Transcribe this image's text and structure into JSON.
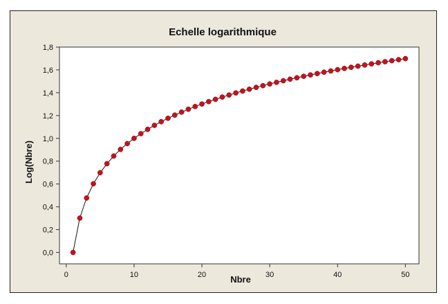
{
  "chart_data": {
    "type": "line",
    "title": "Echelle logarithmique",
    "xlabel": "Nbre",
    "ylabel": "Log(Nbre)",
    "xlim": [
      -1,
      52
    ],
    "ylim": [
      -0.1,
      1.8
    ],
    "x_ticks": [
      0,
      10,
      20,
      30,
      40,
      50
    ],
    "x_tick_labels": [
      "0",
      "10",
      "20",
      "30",
      "40",
      "50"
    ],
    "y_ticks": [
      0.0,
      0.2,
      0.4,
      0.6,
      0.8,
      1.0,
      1.2,
      1.4,
      1.6,
      1.8
    ],
    "y_tick_labels": [
      "0,0",
      "0,2",
      "0,4",
      "0,6",
      "0,8",
      "1,0",
      "1,2",
      "1,4",
      "1,6",
      "1,8"
    ],
    "grid": false,
    "series": [
      {
        "marker": "circle",
        "marker_color": "#c0141e",
        "line_color": "#111111",
        "x": [
          1,
          2,
          3,
          4,
          5,
          6,
          7,
          8,
          9,
          10,
          11,
          12,
          13,
          14,
          15,
          16,
          17,
          18,
          19,
          20,
          21,
          22,
          23,
          24,
          25,
          26,
          27,
          28,
          29,
          30,
          31,
          32,
          33,
          34,
          35,
          36,
          37,
          38,
          39,
          40,
          41,
          42,
          43,
          44,
          45,
          46,
          47,
          48,
          49,
          50
        ],
        "y": [
          0.0,
          0.301,
          0.477,
          0.602,
          0.699,
          0.778,
          0.845,
          0.903,
          0.954,
          1.0,
          1.041,
          1.079,
          1.114,
          1.146,
          1.176,
          1.204,
          1.23,
          1.255,
          1.279,
          1.301,
          1.322,
          1.342,
          1.362,
          1.38,
          1.398,
          1.415,
          1.431,
          1.447,
          1.462,
          1.477,
          1.491,
          1.505,
          1.519,
          1.531,
          1.544,
          1.556,
          1.568,
          1.58,
          1.591,
          1.602,
          1.613,
          1.623,
          1.633,
          1.643,
          1.653,
          1.663,
          1.672,
          1.681,
          1.69,
          1.699
        ]
      }
    ]
  },
  "colors": {
    "frame_background": "#ece8dc",
    "plot_background": "#ffffff",
    "marker": "#c0141e",
    "line": "#111111"
  }
}
